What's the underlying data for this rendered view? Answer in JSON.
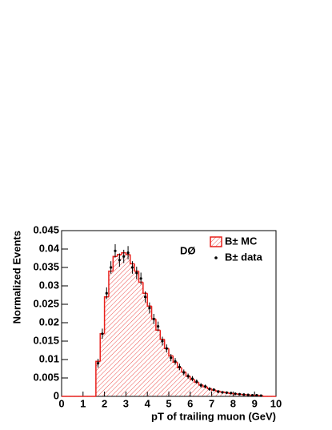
{
  "chart_data": {
    "type": "histogram",
    "annotation": "DØ",
    "x_label": "pT of trailing muon (GeV)",
    "y_label": "Normalized Events",
    "xlim": [
      0,
      10
    ],
    "ylim": [
      0,
      0.045
    ],
    "xticks": [
      0,
      1,
      2,
      3,
      4,
      5,
      6,
      7,
      8,
      9,
      10
    ],
    "yticks": [
      0,
      0.005,
      0.01,
      0.015,
      0.02,
      0.025,
      0.03,
      0.035,
      0.04,
      0.045
    ],
    "bins": [
      0,
      0.2,
      0.4,
      0.6,
      0.8,
      1,
      1.2,
      1.4,
      1.6,
      1.8,
      2,
      2.2,
      2.4,
      2.6,
      2.8,
      3,
      3.2,
      3.4,
      3.6,
      3.8,
      4,
      4.2,
      4.4,
      4.6,
      4.8,
      5,
      5.2,
      5.4,
      5.6,
      5.8,
      6,
      6.2,
      6.4,
      6.6,
      6.8,
      7,
      7.2,
      7.4,
      7.6,
      7.8,
      8,
      8.2,
      8.4,
      8.6,
      8.8,
      9,
      9.2,
      9.4,
      9.6,
      9.8,
      10
    ],
    "series": [
      {
        "name": "B± MC",
        "color": "#e8201c",
        "values": [
          0,
          0,
          0,
          0,
          0,
          0,
          0,
          0,
          0.0095,
          0.017,
          0.027,
          0.034,
          0.038,
          0.0385,
          0.039,
          0.0385,
          0.036,
          0.034,
          0.031,
          0.028,
          0.0245,
          0.021,
          0.018,
          0.0155,
          0.013,
          0.011,
          0.0093,
          0.0078,
          0.0066,
          0.0055,
          0.0046,
          0.0038,
          0.0031,
          0.0026,
          0.0021,
          0.0017,
          0.0014,
          0.0012,
          0.001,
          0.0008,
          0.0007,
          0.0006,
          0.0005,
          0.0004,
          0.0003,
          0.0003,
          0.0002,
          0,
          0,
          0
        ]
      },
      {
        "name": "B± data",
        "color": "#000000",
        "x": [
          1.7,
          1.9,
          2.1,
          2.3,
          2.5,
          2.7,
          2.9,
          3.1,
          3.3,
          3.5,
          3.7,
          3.9,
          4.1,
          4.3,
          4.5,
          4.7,
          4.9,
          5.1,
          5.3,
          5.5,
          5.7,
          5.9,
          6.1,
          6.3,
          6.5,
          6.7,
          6.9,
          7.1,
          7.3,
          7.5,
          7.7,
          7.9,
          8.1,
          8.3,
          8.5,
          8.7,
          8.9,
          9.1,
          9.3
        ],
        "values": [
          0.009,
          0.017,
          0.028,
          0.035,
          0.0395,
          0.037,
          0.038,
          0.039,
          0.035,
          0.0335,
          0.032,
          0.027,
          0.024,
          0.021,
          0.019,
          0.015,
          0.013,
          0.0105,
          0.0095,
          0.008,
          0.0065,
          0.0055,
          0.0048,
          0.004,
          0.003,
          0.0027,
          0.002,
          0.0018,
          0.0013,
          0.0011,
          0.001,
          0.0009,
          0.0007,
          0.0006,
          0.0005,
          0.0004,
          0.0003,
          0.0003,
          0.0002
        ],
        "errors": [
          0.0012,
          0.0014,
          0.0016,
          0.0017,
          0.0018,
          0.0018,
          0.0018,
          0.0018,
          0.0017,
          0.0017,
          0.0016,
          0.0015,
          0.0015,
          0.0014,
          0.0013,
          0.0012,
          0.0011,
          0.001,
          0.0009,
          0.0009,
          0.0008,
          0.0007,
          0.0007,
          0.0006,
          0.0006,
          0.0005,
          0.0005,
          0.0004,
          0.0004,
          0.0003,
          0.0003,
          0.0003,
          0.0003,
          0.0002,
          0.0002,
          0.0002,
          0.0002,
          0.0002,
          0.0001
        ]
      }
    ]
  }
}
